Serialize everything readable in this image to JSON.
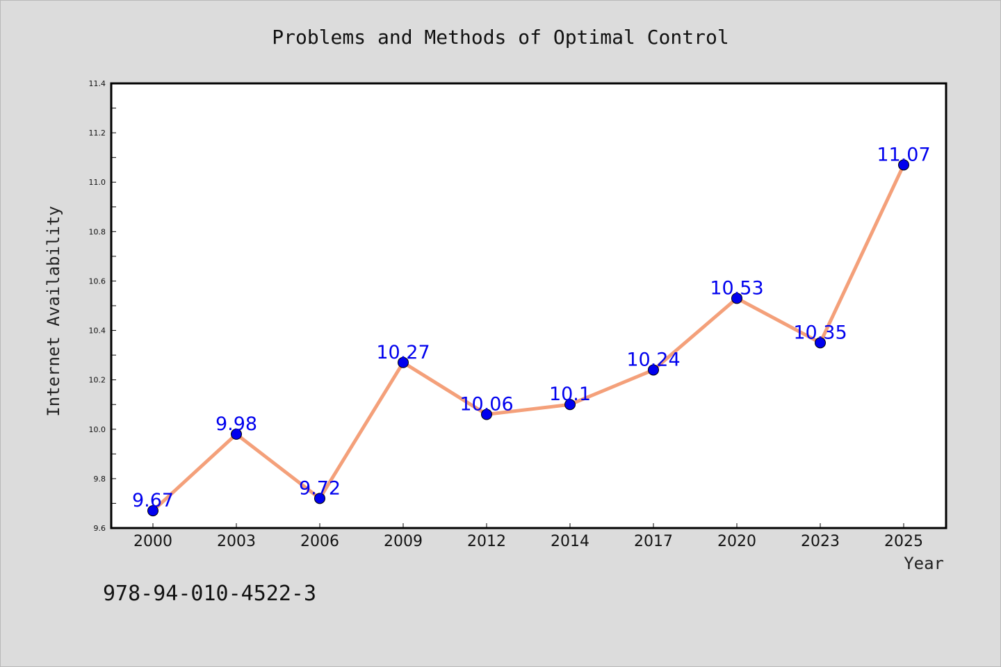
{
  "chart_data": {
    "type": "line",
    "title": "Problems and Methods of Optimal Control",
    "xlabel": "Year",
    "ylabel": "Internet Availability",
    "categories": [
      "2000",
      "2003",
      "2006",
      "2009",
      "2012",
      "2014",
      "2017",
      "2020",
      "2023",
      "2025"
    ],
    "values": [
      9.67,
      9.98,
      9.72,
      10.27,
      10.06,
      10.1,
      10.24,
      10.53,
      10.35,
      11.07
    ],
    "data_labels": [
      "9.67",
      "9.98",
      "9.72",
      "10.27",
      "10.06",
      "10.1",
      "10.24",
      "10.53",
      "10.35",
      "11.07"
    ],
    "ylim": [
      9.6,
      11.4
    ],
    "yticks": [
      "9.6",
      "9.8",
      "10.0",
      "10.2",
      "10.4",
      "10.6",
      "10.8",
      "11.0",
      "11.2",
      "11.4"
    ],
    "grid": false,
    "colors": {
      "line": "#f4a07a",
      "marker": "#0000ee",
      "label": "#0000ee",
      "background": "#dcdcdc",
      "plot_background": "#ffffff"
    }
  },
  "footer": {
    "code": "978-94-010-4522-3"
  }
}
